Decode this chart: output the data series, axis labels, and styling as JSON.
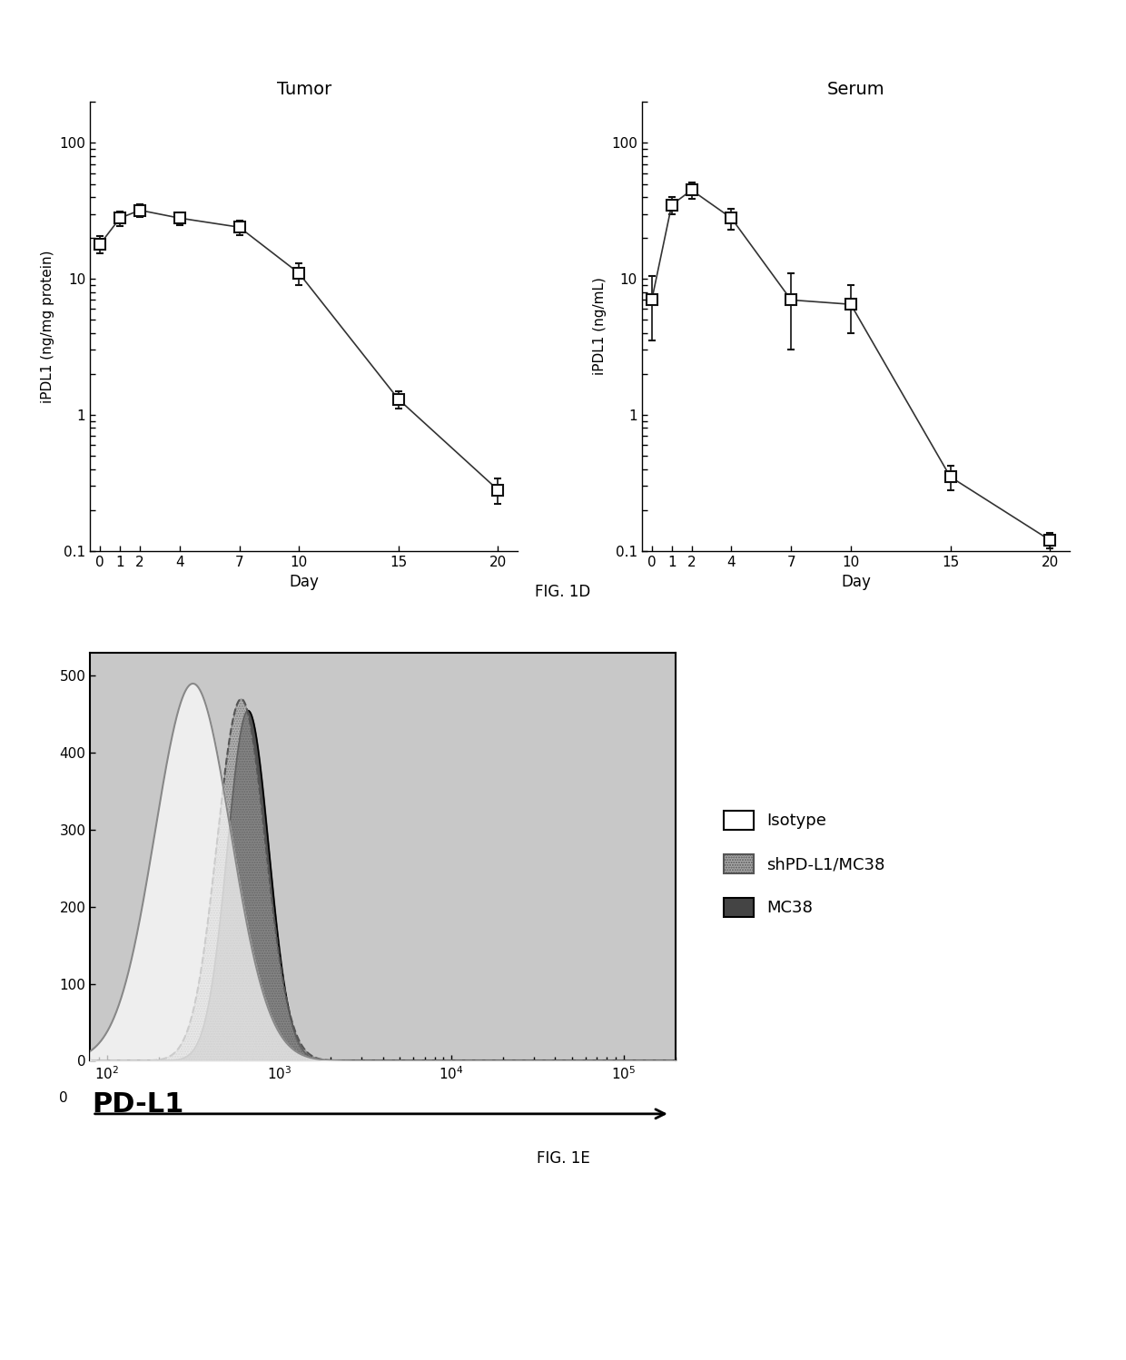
{
  "tumor_days": [
    0,
    1,
    2,
    4,
    7,
    10,
    15,
    20
  ],
  "tumor_values": [
    18,
    28,
    32,
    28,
    24,
    11,
    1.3,
    0.28
  ],
  "tumor_errors": [
    2.5,
    3.5,
    3.5,
    3.0,
    3.0,
    2.0,
    0.18,
    0.06
  ],
  "tumor_title": "Tumor",
  "tumor_ylabel": "iPDL1 (ng/mg protein)",
  "tumor_xlabel": "Day",
  "tumor_ylim": [
    0.1,
    200
  ],
  "serum_days": [
    0,
    1,
    2,
    4,
    7,
    10,
    15,
    20
  ],
  "serum_values": [
    7,
    35,
    45,
    28,
    7,
    6.5,
    0.35,
    0.12
  ],
  "serum_errors": [
    3.5,
    5.0,
    6.0,
    5.0,
    4.0,
    2.5,
    0.07,
    0.015
  ],
  "serum_title": "Serum",
  "serum_ylabel": "iPDL1 (ng/mL)",
  "serum_xlabel": "Day",
  "serum_ylim": [
    0.1,
    200
  ],
  "fig1d_label": "FIG. 1D",
  "fig1e_label": "FIG. 1E",
  "isotype_label": "Isotype",
  "shpdl1_label": "shPD-L1/MC38",
  "mc38_label": "MC38",
  "line_color": "#333333",
  "marker_facecolor": "white",
  "marker_edgecolor": "#111111",
  "bg_color": "#ffffff",
  "flow_bg_color": "#c8c8c8"
}
